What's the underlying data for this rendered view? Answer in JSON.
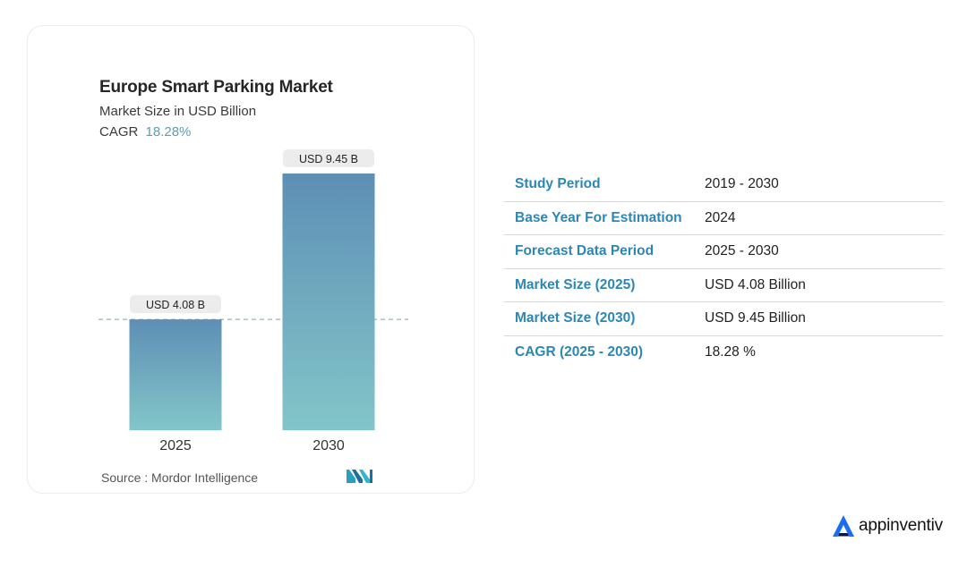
{
  "chart_data": {
    "type": "bar",
    "title": "Europe Smart Parking Market",
    "subtitle": "Market Size in USD Billion",
    "cagr_label": "CAGR",
    "cagr_value": "18.28%",
    "categories": [
      "2025",
      "2030"
    ],
    "values": [
      4.08,
      9.45
    ],
    "data_labels": [
      "USD 4.08 B",
      "USD 9.45 B"
    ],
    "ylim": [
      0,
      9.45
    ],
    "grid": false,
    "reference_line": "dashed line at 2025 value",
    "bar_gradient": {
      "top": "#5d8fb5",
      "bottom": "#83c6c9"
    }
  },
  "source": "Source :  Mordor Intelligence",
  "icons": {
    "source_logo": "mordor-intelligence-logo-icon",
    "brand_logo": "appinventiv-logo-icon"
  },
  "table": {
    "rows": [
      {
        "label": "Study Period",
        "value": "2019 - 2030"
      },
      {
        "label": "Base Year For Estimation",
        "value": "2024"
      },
      {
        "label": "Forecast Data Period",
        "value": "2025 - 2030"
      },
      {
        "label": "Market Size (2025)",
        "value": "USD 4.08 Billion"
      },
      {
        "label": "Market Size (2030)",
        "value": "USD 9.45 Billion"
      },
      {
        "label": "CAGR (2025 - 2030)",
        "value": "18.28 %"
      }
    ]
  },
  "brand": {
    "name": "appinventiv",
    "color": "#1b6ef0"
  },
  "colors": {
    "accent_blue": "#2c87b5",
    "cagr": "#5f9bb3"
  }
}
